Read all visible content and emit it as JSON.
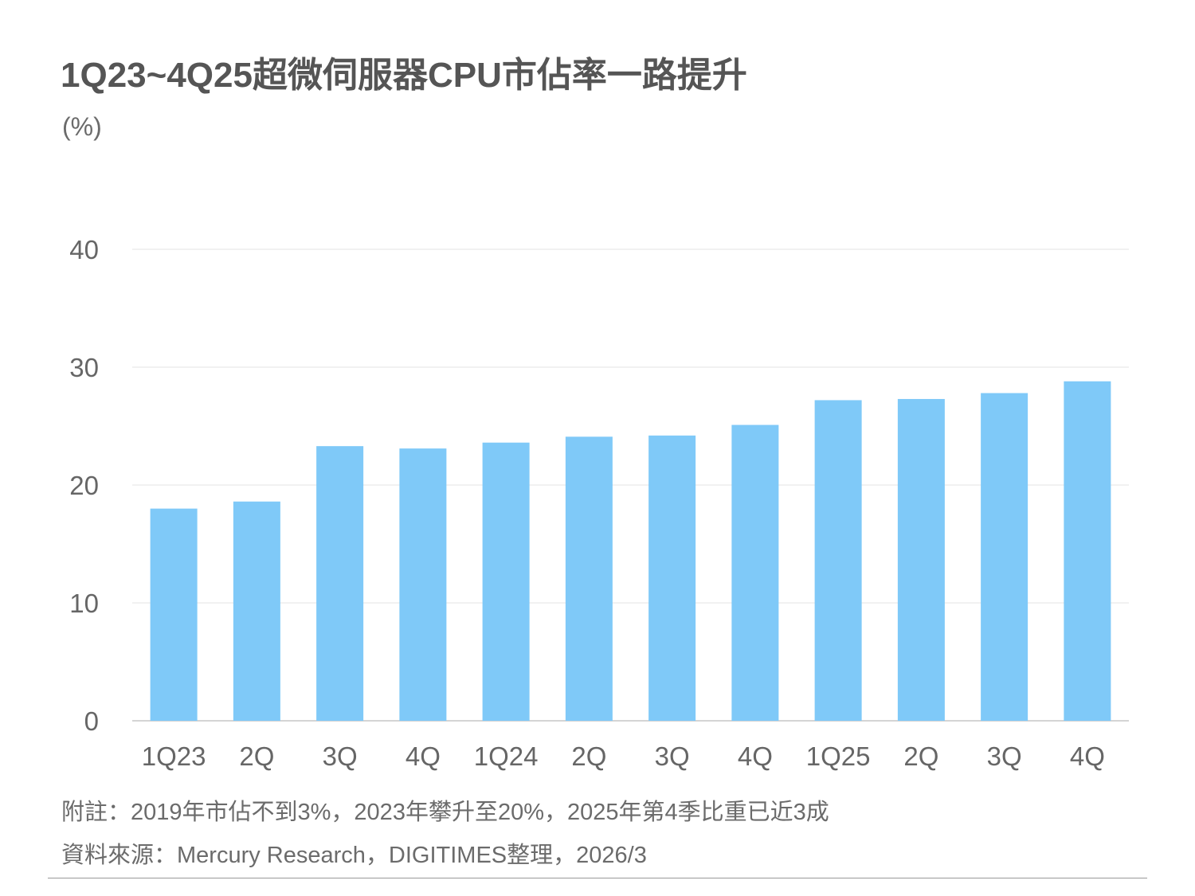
{
  "title": "1Q23~4Q25超微伺服器CPU市佔率一路提升",
  "unit_label": "(%)",
  "notes": {
    "line1": "附註：2019年市佔不到3%，2023年攀升至20%，2025年第4季比重已近3成",
    "line2": "資料來源：Mercury Research，DIGITIMES整理，2026/3"
  },
  "colors": {
    "bar": "#7fc9f8",
    "gridline": "#e3e3e3",
    "axis_text": "#666666",
    "title_text": "#555555"
  },
  "chart_data": {
    "type": "bar",
    "title": "1Q23~4Q25超微伺服器CPU市佔率一路提升",
    "ylabel": "(%)",
    "xlabel": "",
    "categories": [
      "1Q23",
      "2Q",
      "3Q",
      "4Q",
      "1Q24",
      "2Q",
      "3Q",
      "4Q",
      "1Q25",
      "2Q",
      "3Q",
      "4Q"
    ],
    "values": [
      18.0,
      18.6,
      23.3,
      23.1,
      23.6,
      24.1,
      24.2,
      25.1,
      27.2,
      27.3,
      27.8,
      28.8
    ],
    "ylim": [
      0,
      40
    ],
    "yticks": [
      0,
      10,
      20,
      30,
      40
    ],
    "grid": true,
    "legend": "none"
  }
}
